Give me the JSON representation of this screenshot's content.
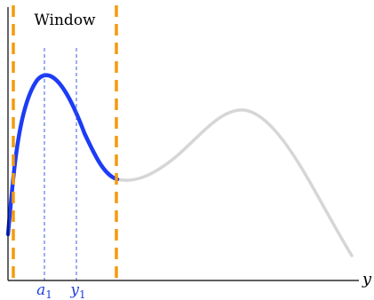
{
  "window_label": "Window",
  "axis": {
    "horizontal_label": "y"
  },
  "markers": [
    {
      "symbol": "a",
      "subscript": "1"
    },
    {
      "symbol": "y",
      "subscript": "1"
    }
  ],
  "colors": {
    "axis": "#000000",
    "window_boundary": "#f59a0c",
    "highlighted_curve": "#1c3cf5",
    "background_curve": "#d6d6d6",
    "marker_line": "#3c5be0",
    "marker_text": "#2040e0"
  }
}
